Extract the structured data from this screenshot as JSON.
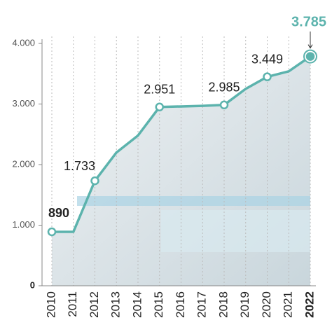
{
  "chart_data": {
    "type": "line",
    "categories": [
      "2010",
      "2011",
      "2012",
      "2013",
      "2014",
      "2015",
      "2016",
      "2017",
      "2018",
      "2019",
      "2020",
      "2021",
      "2022"
    ],
    "values": [
      890,
      890,
      1733,
      2200,
      2480,
      2951,
      2960,
      2970,
      2985,
      3250,
      3449,
      3540,
      3785
    ],
    "value_labels": [
      "890",
      null,
      "1.733",
      null,
      null,
      "2.951",
      null,
      null,
      "2.985",
      null,
      "3.449",
      null,
      "3.785"
    ],
    "color": "#5cb3ad",
    "ylim": [
      0,
      4000
    ],
    "yticks": [
      0,
      {
        "value": 1000,
        "label": "1.000"
      },
      {
        "value": 2000,
        "label": "2.000"
      },
      {
        "value": 3000,
        "label": "3.000"
      },
      {
        "value": 4000,
        "label": "4.000"
      }
    ],
    "grid": true
  }
}
